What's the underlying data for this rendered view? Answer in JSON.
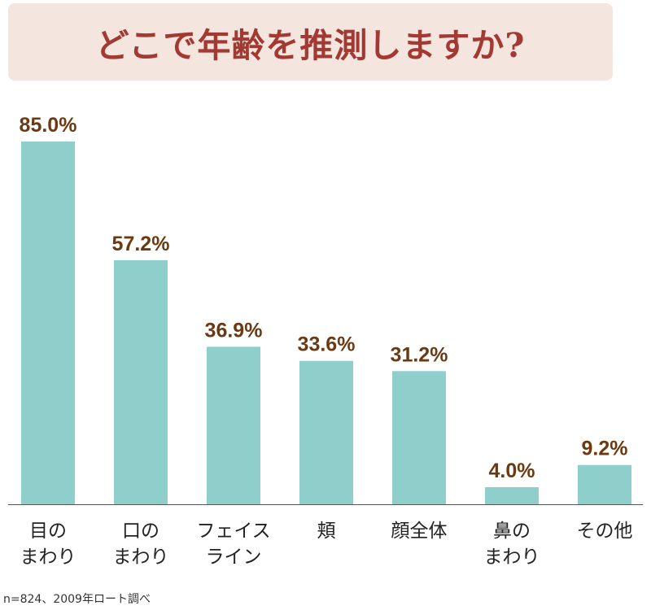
{
  "title": "どこで年齢を推測しますか?",
  "footnote": "n=824、2009年ロート調べ",
  "colors": {
    "bar": "#8ecfcc",
    "title": "#a23a33",
    "title_bg": "#f4e5df",
    "value_label": "#6b3a12",
    "axis": "#555555"
  },
  "chart_data": {
    "type": "bar",
    "title": "どこで年齢を推測しますか?",
    "categories": [
      [
        "目の",
        "まわり"
      ],
      [
        "口の",
        "まわり"
      ],
      [
        "フェイス",
        "ライン"
      ],
      [
        "頬"
      ],
      [
        "顔全体"
      ],
      [
        "鼻の",
        "まわり"
      ],
      [
        "その他"
      ]
    ],
    "values": [
      85.0,
      57.2,
      36.9,
      33.6,
      31.2,
      4.0,
      9.2
    ],
    "value_labels": [
      "85.0%",
      "57.2%",
      "36.9%",
      "33.6%",
      "31.2%",
      "4.0%",
      "9.2%"
    ],
    "unit": "%",
    "xlabel": "",
    "ylabel": "",
    "ylim": [
      0,
      85.0
    ],
    "grid": false,
    "legend": "none"
  }
}
